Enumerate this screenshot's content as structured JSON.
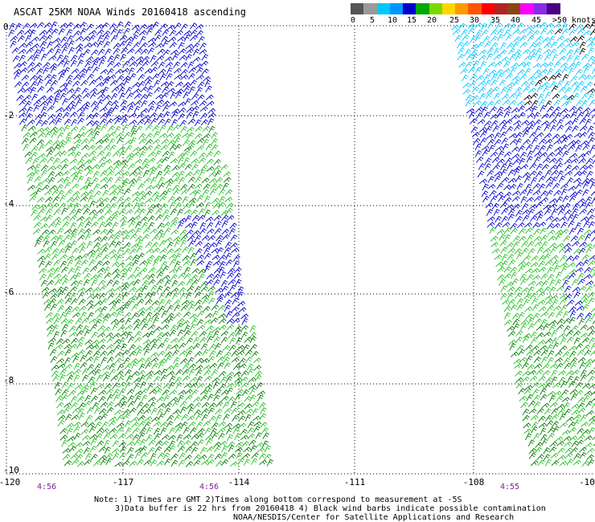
{
  "title": "ASCAT 25KM NOAA Winds 20160418 ascending",
  "scale": {
    "labels": [
      "0",
      "5",
      "10",
      "15",
      "20",
      "25",
      "30",
      "35",
      "40",
      "45",
      ">50 knots"
    ],
    "colors": [
      "#555555",
      "#9a9a9a",
      "#00c8ff",
      "#0096ff",
      "#0000cd",
      "#00a800",
      "#7cd800",
      "#ffd700",
      "#ff9900",
      "#ff5500",
      "#ff0000",
      "#b22222",
      "#8b4513",
      "#ff00ff",
      "#8a2be2",
      "#4b0082"
    ]
  },
  "grid": {
    "lat_labels": [
      "0",
      "-2",
      "-4",
      "-6",
      "-8",
      "-10"
    ],
    "lon_labels": [
      "-120",
      "-117",
      "-114",
      "-111",
      "-108",
      "-10"
    ]
  },
  "times": [
    "4:56",
    "4:56",
    "4:55"
  ],
  "notes": [
    "Note: 1) Times are GMT 2)Times along bottom correspond to measurement at -5S",
    "3)Data buffer is 22 hrs from 20160418 4) Black wind barbs indicate possible contamination",
    "NOAA/NESDIS/Center for Satellite Applications and Research"
  ],
  "colors": {
    "barb_blue": "#0000cd",
    "barb_cyan": "#00c8ff",
    "barb_green": "#22c022",
    "barb_darkgreen": "#007a00",
    "barb_black": "#000000",
    "time_purple": "#7a1ea0"
  }
}
